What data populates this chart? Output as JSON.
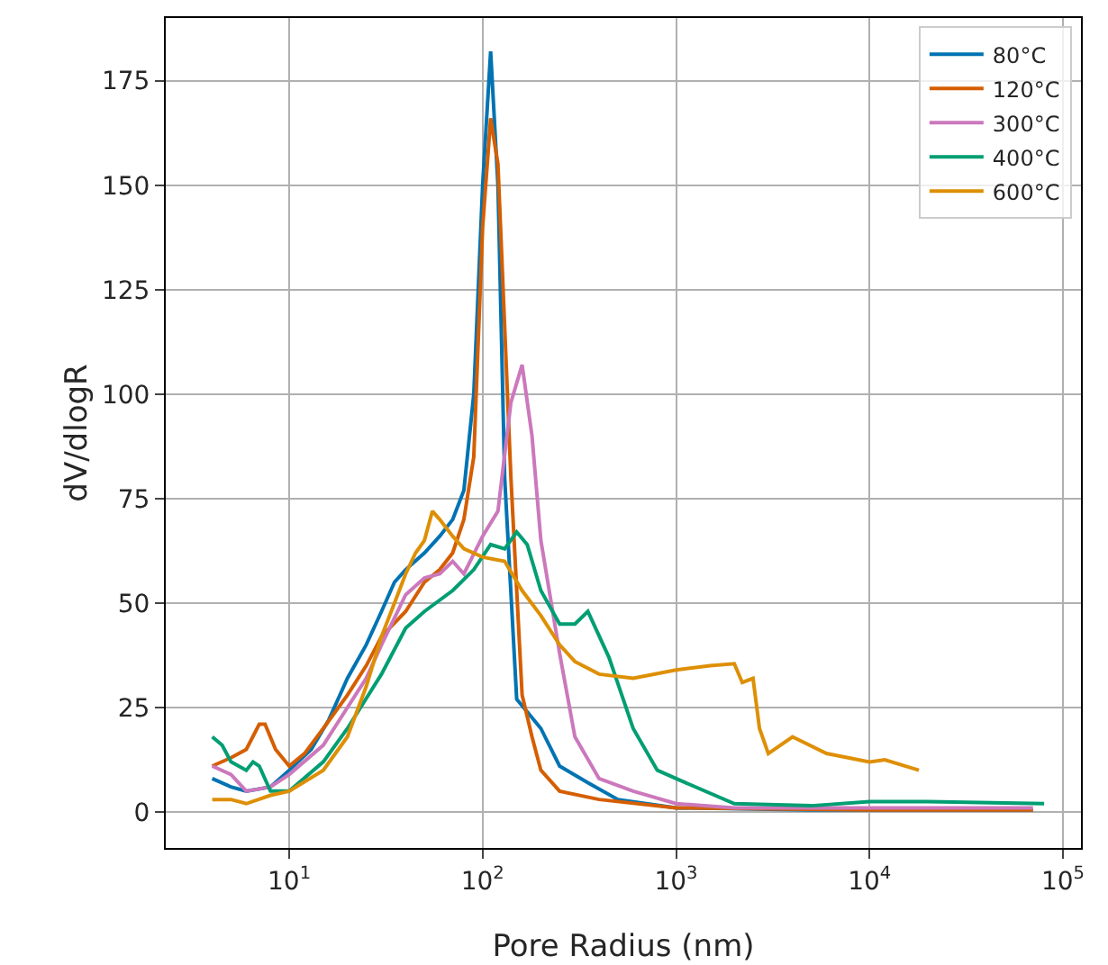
{
  "chart_data": {
    "type": "line",
    "xlabel": "Pore Radius (nm)",
    "ylabel": "dV/dlogR",
    "log": "x",
    "grid": true,
    "legend": "top right",
    "marker": "none",
    "line_style": "solid",
    "xlim": [
      2.3,
      124000
    ],
    "xticks": [
      {
        "value": 10,
        "label": "10$^{1}$"
      },
      {
        "value": 100,
        "label": "10$^{2}$"
      },
      {
        "value": 1000,
        "label": "10$^{3}$"
      },
      {
        "value": 10000,
        "label": "10$^{4}$"
      },
      {
        "value": 100000,
        "label": "10$^{5}$"
      }
    ],
    "ylim": [
      -8.6,
      190
    ],
    "yticks": [
      0,
      25,
      50,
      75,
      100,
      125,
      150,
      175
    ],
    "series": [
      {
        "name": "80°C",
        "color": "#0173b2",
        "x": [
          4,
          5,
          6,
          8,
          10,
          13,
          16,
          20,
          25,
          30,
          35,
          40,
          50,
          60,
          70,
          80,
          90,
          100,
          110,
          120,
          130,
          150,
          170,
          200,
          250,
          350,
          500,
          1000,
          5000,
          70000
        ],
        "values": [
          8,
          6,
          5,
          6,
          10,
          15,
          22,
          32,
          40,
          48,
          55,
          58,
          62,
          66,
          70,
          77,
          100,
          150,
          182,
          150,
          80,
          27,
          24,
          20,
          11,
          7,
          3,
          1,
          0.5,
          0.5
        ]
      },
      {
        "name": "120°C",
        "color": "#d55e00",
        "x": [
          4,
          5,
          6,
          7,
          7.5,
          8.5,
          10,
          12,
          15,
          20,
          25,
          30,
          40,
          50,
          60,
          70,
          80,
          90,
          100,
          110,
          120,
          140,
          160,
          180,
          200,
          250,
          400,
          1000,
          10000,
          70000
        ],
        "values": [
          11,
          13,
          15,
          21,
          21,
          15,
          11,
          14,
          20,
          28,
          35,
          42,
          48,
          55,
          58,
          62,
          70,
          85,
          140,
          166,
          155,
          80,
          28,
          18,
          10,
          5,
          3,
          1,
          0.5,
          0.5
        ]
      },
      {
        "name": "300°C",
        "color": "#cc78bc",
        "x": [
          4,
          5,
          6,
          8,
          10,
          15,
          20,
          25,
          30,
          40,
          50,
          60,
          70,
          80,
          100,
          120,
          140,
          160,
          180,
          200,
          250,
          300,
          400,
          600,
          1000,
          2000,
          10000,
          70000
        ],
        "values": [
          11,
          9,
          5,
          6,
          9,
          16,
          25,
          32,
          40,
          52,
          56,
          57,
          60,
          57,
          66,
          72,
          98,
          107,
          90,
          65,
          38,
          18,
          8,
          5,
          2,
          1,
          1,
          1
        ]
      },
      {
        "name": "400°C",
        "color": "#029e73",
        "x": [
          4,
          4.5,
          5,
          6,
          6.5,
          7,
          8,
          10,
          15,
          20,
          30,
          40,
          50,
          70,
          90,
          110,
          130,
          150,
          170,
          200,
          250,
          300,
          350,
          450,
          600,
          800,
          1000,
          2000,
          5000,
          10000,
          20000,
          80000
        ],
        "values": [
          18,
          16,
          12,
          10,
          12,
          11,
          5,
          5,
          12,
          20,
          33,
          44,
          48,
          53,
          58,
          64,
          63,
          67,
          64,
          53,
          45,
          45,
          48,
          37,
          20,
          10,
          8,
          2,
          1.5,
          2.5,
          2.5,
          2
        ]
      },
      {
        "name": "600°C",
        "color": "#de8f05",
        "x": [
          4,
          5,
          6,
          8,
          10,
          15,
          20,
          25,
          30,
          35,
          40,
          45,
          50,
          55,
          60,
          70,
          80,
          100,
          130,
          160,
          200,
          250,
          300,
          400,
          600,
          1000,
          1500,
          2000,
          2200,
          2500,
          2700,
          3000,
          4000,
          6000,
          10000,
          12000,
          18000
        ],
        "values": [
          3,
          3,
          2,
          4,
          5,
          10,
          18,
          30,
          42,
          50,
          57,
          62,
          65,
          72,
          70,
          66,
          63,
          61,
          60,
          53,
          47,
          40,
          36,
          33,
          32,
          34,
          35,
          35.5,
          31,
          32,
          20,
          14,
          18,
          14,
          12,
          12.5,
          10
        ]
      }
    ]
  }
}
